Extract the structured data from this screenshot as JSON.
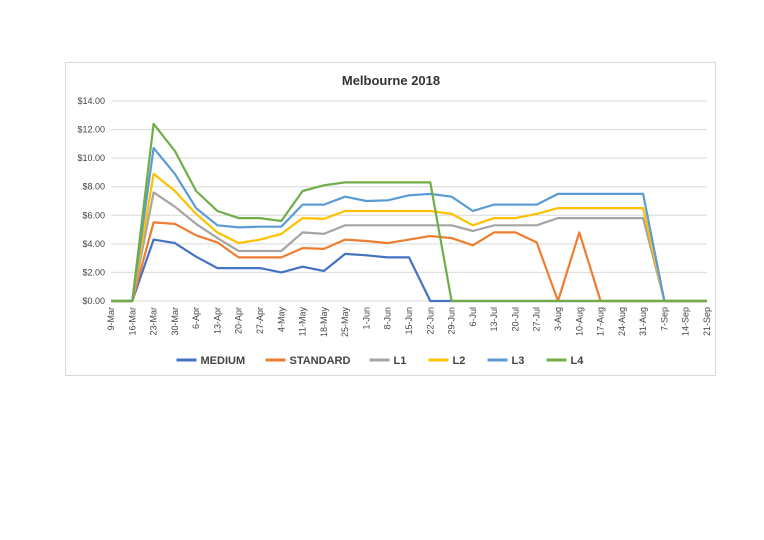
{
  "chart_data": {
    "type": "line",
    "title": "Melbourne 2018",
    "xlabel": "",
    "ylabel": "",
    "ylim": [
      0,
      14
    ],
    "ytick_labels": [
      "$0.00",
      "$2.00",
      "$4.00",
      "$6.00",
      "$8.00",
      "$10.00",
      "$12.00",
      "$14.00"
    ],
    "ytick_values": [
      0,
      2,
      4,
      6,
      8,
      10,
      12,
      14
    ],
    "grid": "horizontal",
    "legend_position": "bottom",
    "categories": [
      "9-Mar",
      "16-Mar",
      "23-Mar",
      "30-Mar",
      "6-Apr",
      "13-Apr",
      "20-Apr",
      "27-Apr",
      "4-May",
      "11-May",
      "18-May",
      "25-May",
      "1-Jun",
      "8-Jun",
      "15-Jun",
      "22-Jun",
      "29-Jun",
      "6-Jul",
      "13-Jul",
      "20-Jul",
      "27-Jul",
      "3-Aug",
      "10-Aug",
      "17-Aug",
      "24-Aug",
      "31-Aug",
      "7-Sep",
      "14-Sep",
      "21-Sep"
    ],
    "series": [
      {
        "name": "MEDIUM",
        "color": "#4472c4",
        "values": [
          0,
          0,
          4.3,
          4.05,
          3.1,
          2.3,
          2.3,
          2.3,
          2,
          2.4,
          2.1,
          3.3,
          3.2,
          3.05,
          3.05,
          0,
          0,
          0,
          0,
          0,
          0,
          0,
          0,
          0,
          0,
          0,
          0,
          0,
          0
        ]
      },
      {
        "name": "STANDARD",
        "color": "#ed7d31",
        "values": [
          0,
          0,
          5.5,
          5.4,
          4.6,
          4.1,
          3.05,
          3.05,
          3.05,
          3.7,
          3.65,
          4.3,
          4.2,
          4.05,
          4.3,
          4.55,
          4.4,
          3.9,
          4.8,
          4.8,
          4.1,
          0,
          4.8,
          0,
          0,
          0,
          0,
          0,
          0
        ]
      },
      {
        "name": "L1",
        "color": "#a5a5a5",
        "values": [
          0,
          0,
          7.6,
          6.6,
          5.4,
          4.4,
          3.5,
          3.5,
          3.5,
          4.8,
          4.7,
          5.3,
          5.3,
          5.3,
          5.3,
          5.3,
          5.3,
          4.9,
          5.3,
          5.3,
          5.3,
          5.8,
          5.8,
          5.8,
          5.8,
          5.8,
          0,
          0,
          0
        ]
      },
      {
        "name": "L2",
        "color": "#ffc000",
        "values": [
          0,
          0,
          8.9,
          7.7,
          6.1,
          4.8,
          4.05,
          4.3,
          4.7,
          5.8,
          5.75,
          6.3,
          6.3,
          6.3,
          6.3,
          6.3,
          6.1,
          5.3,
          5.8,
          5.8,
          6.1,
          6.5,
          6.5,
          6.5,
          6.5,
          6.5,
          0,
          0,
          0
        ]
      },
      {
        "name": "L3",
        "color": "#5b9bd5",
        "values": [
          0,
          0,
          10.7,
          8.9,
          6.5,
          5.3,
          5.15,
          5.2,
          5.2,
          6.75,
          6.75,
          7.3,
          7,
          7.05,
          7.4,
          7.5,
          7.3,
          6.3,
          6.75,
          6.75,
          6.75,
          7.5,
          7.5,
          7.5,
          7.5,
          7.5,
          0,
          0,
          0
        ]
      },
      {
        "name": "L4",
        "color": "#70ad47",
        "values": [
          0,
          0,
          12.4,
          10.5,
          7.7,
          6.3,
          5.8,
          5.8,
          5.6,
          7.7,
          8.1,
          8.3,
          8.3,
          8.3,
          8.3,
          8.3,
          0,
          0,
          0,
          0,
          0,
          0,
          0,
          0,
          0,
          0,
          0,
          0,
          0
        ]
      }
    ]
  }
}
